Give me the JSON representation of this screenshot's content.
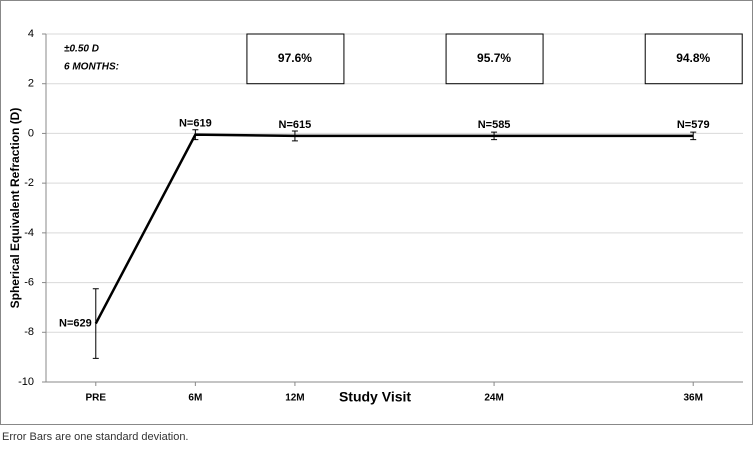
{
  "chart_data": {
    "type": "line",
    "x": [
      0,
      6,
      12,
      24,
      36
    ],
    "values": [
      -7.65,
      -0.05,
      -0.1,
      -0.1,
      -0.1
    ],
    "errors": [
      1.4,
      0.2,
      0.2,
      0.15,
      0.15
    ],
    "color": "#000000",
    "point_labels": [
      "N=629",
      "N=619",
      "N=615",
      "N=585",
      "N=579"
    ],
    "box_labels": [
      null,
      null,
      "97.6%",
      "95.7%",
      "94.8%"
    ],
    "annotation": [
      "±0.50 D",
      "6 MONTHS:"
    ],
    "xlabel": "Study Visit",
    "ylabel": "Spherical Equivalent Refraction (D)",
    "xlim": [
      -3,
      39
    ],
    "xticks": [
      {
        "value": 0,
        "label": "PRE"
      },
      {
        "value": 6,
        "label": "6M"
      },
      {
        "value": 12,
        "label": "12M"
      },
      {
        "value": 24,
        "label": "24M"
      },
      {
        "value": 36,
        "label": "36M"
      }
    ],
    "ylim": [
      -10,
      4
    ],
    "yticks": [
      4,
      2,
      0,
      -2,
      -4,
      -6,
      -8,
      -10
    ],
    "grid": true,
    "footnote": "Error Bars are one standard deviation."
  }
}
